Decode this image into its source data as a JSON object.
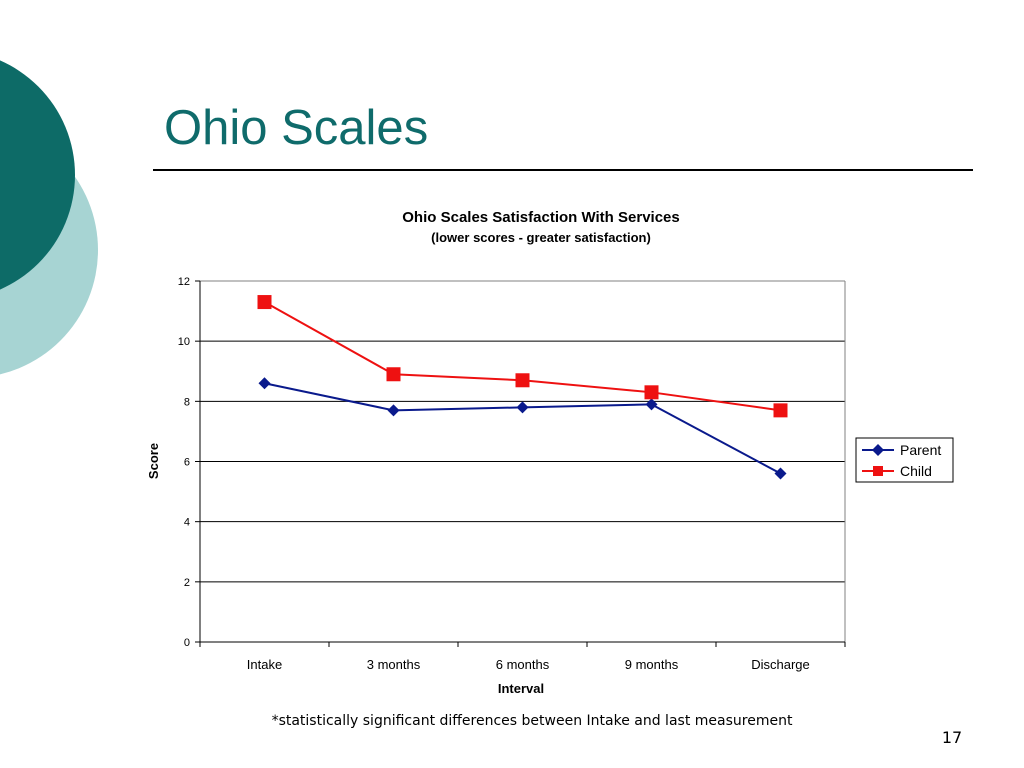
{
  "slide": {
    "title": "Ohio Scales",
    "footnote": "*statistically significant differences between Intake and last measurement",
    "page_number": "17"
  },
  "colors": {
    "title": "#0f6b6b",
    "deco_dark": "#0d6b67",
    "deco_light": "#a7d4d3",
    "parent": "#0a1a8c",
    "child": "#ee1111",
    "gridline": "#000000",
    "plot_border": "#808080"
  },
  "chart_data": {
    "type": "line",
    "title": "Ohio Scales Satisfaction With Services",
    "subtitle": "(lower scores - greater satisfaction)",
    "xlabel": "Interval",
    "ylabel": "Score",
    "categories": [
      "Intake",
      "3 months",
      "6 months",
      "9 months",
      "Discharge"
    ],
    "ylim": [
      0,
      12
    ],
    "yticks": [
      "0",
      "2",
      "4",
      "6",
      "8",
      "10",
      "12"
    ],
    "grid": true,
    "legend_position": "right",
    "series": [
      {
        "name": "Parent",
        "marker": "diamond",
        "values": [
          8.6,
          7.7,
          7.8,
          7.9,
          5.6
        ]
      },
      {
        "name": "Child",
        "marker": "square",
        "values": [
          11.3,
          8.9,
          8.7,
          8.3,
          7.7
        ]
      }
    ]
  }
}
